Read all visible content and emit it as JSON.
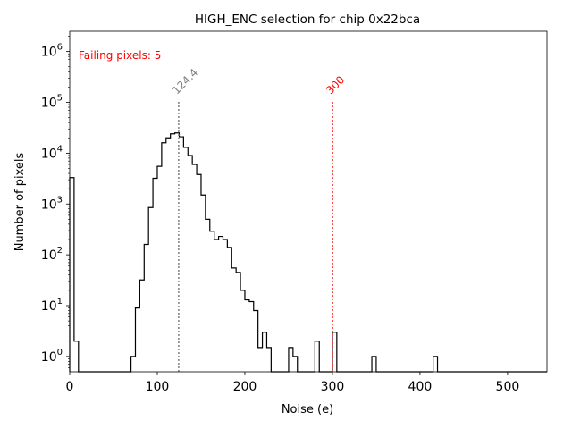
{
  "chart_data": {
    "type": "histogram",
    "title": "HIGH_ENC selection for chip 0x22bca",
    "xlabel": "Noise (e)",
    "ylabel": "Number of pixels",
    "xlim": [
      0,
      545
    ],
    "ylim": [
      0.5,
      2500000
    ],
    "yscale": "log",
    "grid": false,
    "xticks": [
      0,
      100,
      200,
      300,
      400,
      500
    ],
    "xtick_labels": [
      "0",
      "100",
      "200",
      "300",
      "400",
      "500"
    ],
    "yticks": [
      1,
      10,
      100,
      1000,
      10000,
      100000,
      1000000
    ],
    "ytick_base": "10",
    "ytick_exponents": [
      "0",
      "1",
      "2",
      "3",
      "4",
      "5",
      "6"
    ],
    "bin_width": 5,
    "bins_start": 0,
    "counts": [
      3300,
      2,
      0,
      0,
      0,
      0,
      0,
      0,
      0,
      0,
      0,
      0,
      0,
      0,
      1,
      9,
      32,
      160,
      850,
      3200,
      5500,
      16000,
      20000,
      24000,
      25000,
      21000,
      13000,
      9000,
      6000,
      3800,
      1500,
      500,
      290,
      200,
      230,
      200,
      140,
      55,
      45,
      20,
      13,
      12,
      8,
      1.5,
      3,
      1.5,
      0,
      0,
      0,
      0,
      1.5,
      1,
      0,
      0,
      0,
      0,
      2,
      0,
      0,
      0,
      3,
      0,
      0,
      0,
      0,
      0,
      0,
      0,
      0,
      1,
      0,
      0,
      0,
      0,
      0,
      0,
      0,
      0,
      0,
      0,
      0,
      0,
      0,
      1,
      0,
      0,
      0,
      0,
      0,
      0,
      0,
      0,
      0,
      0,
      0,
      0,
      0,
      0,
      0,
      0,
      0,
      0,
      0,
      0,
      0,
      0,
      0,
      0,
      0
    ],
    "series_color": "#000000",
    "annotations": [
      {
        "text": "Failing pixels: 5",
        "color": "#ff0000",
        "placement": "top-left"
      }
    ],
    "vlines": [
      {
        "x": 124.4,
        "label": "124.4",
        "color": "#808080",
        "style": "dotted",
        "ymax": 110000
      },
      {
        "x": 300,
        "label": "300",
        "color": "#ff0000",
        "style": "dotted",
        "ymax": 110000
      }
    ]
  }
}
